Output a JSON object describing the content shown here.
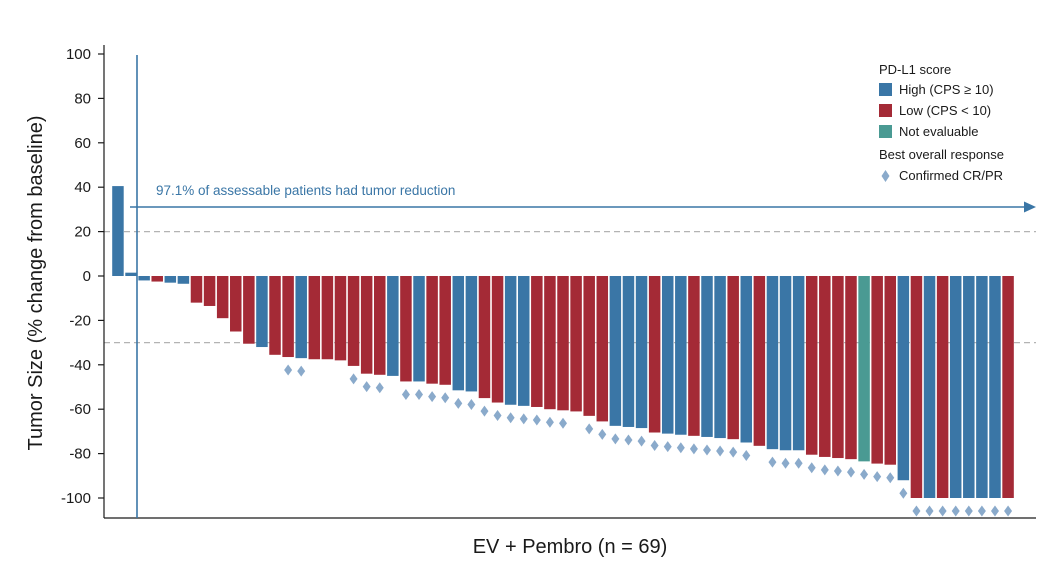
{
  "chart_data": {
    "type": "bar",
    "title": "",
    "xlabel": "EV + Pembro (n = 69)",
    "ylabel": "Tumor Size (% change from baseline)",
    "ylim": [
      -108,
      102
    ],
    "yticks": [
      100,
      80,
      60,
      40,
      20,
      0,
      -20,
      -40,
      -60,
      -80,
      -100
    ],
    "reference_lines": [
      20,
      -30
    ],
    "colors": {
      "high": "#3a76a6",
      "low": "#a42a36",
      "ne": "#4a9a93",
      "marker": "#8aaacb",
      "annotation": "#3a76a6",
      "axis": "#1a1a1a",
      "refline": "#b3b3b3"
    },
    "annotation": {
      "text": "97.1% of assessable patients had tumor reduction"
    },
    "legend": {
      "placement": "top-right",
      "pdl1_title": "PD-L1 score",
      "entries": [
        {
          "key": "high",
          "label": "High (CPS ≥ 10)"
        },
        {
          "key": "low",
          "label": "Low (CPS < 10)"
        },
        {
          "key": "ne",
          "label": "Not evaluable"
        }
      ],
      "response_title": "Best overall response",
      "marker_label": "Confirmed CR/PR"
    },
    "bars": [
      {
        "value": 40.5,
        "group": "high",
        "response": false
      },
      {
        "value": 1.5,
        "group": "high",
        "response": false
      },
      {
        "value": -2,
        "group": "high",
        "response": false
      },
      {
        "value": -2.5,
        "group": "low",
        "response": false
      },
      {
        "value": -3,
        "group": "high",
        "response": false
      },
      {
        "value": -3.5,
        "group": "high",
        "response": false
      },
      {
        "value": -12,
        "group": "low",
        "response": false
      },
      {
        "value": -13.5,
        "group": "low",
        "response": false
      },
      {
        "value": -19,
        "group": "low",
        "response": false
      },
      {
        "value": -25,
        "group": "low",
        "response": false
      },
      {
        "value": -30.5,
        "group": "low",
        "response": false
      },
      {
        "value": -32,
        "group": "high",
        "response": false
      },
      {
        "value": -35.5,
        "group": "low",
        "response": false
      },
      {
        "value": -36.5,
        "group": "low",
        "response": true
      },
      {
        "value": -37,
        "group": "high",
        "response": true
      },
      {
        "value": -37.5,
        "group": "low",
        "response": false
      },
      {
        "value": -37.5,
        "group": "low",
        "response": false
      },
      {
        "value": -38,
        "group": "low",
        "response": false
      },
      {
        "value": -40.5,
        "group": "low",
        "response": true
      },
      {
        "value": -44,
        "group": "low",
        "response": true
      },
      {
        "value": -44.5,
        "group": "low",
        "response": true
      },
      {
        "value": -45,
        "group": "high",
        "response": false
      },
      {
        "value": -47.5,
        "group": "low",
        "response": true
      },
      {
        "value": -47.5,
        "group": "high",
        "response": true
      },
      {
        "value": -48.5,
        "group": "low",
        "response": true
      },
      {
        "value": -49,
        "group": "low",
        "response": true
      },
      {
        "value": -51.5,
        "group": "high",
        "response": true
      },
      {
        "value": -52,
        "group": "high",
        "response": true
      },
      {
        "value": -55,
        "group": "low",
        "response": true
      },
      {
        "value": -57,
        "group": "low",
        "response": true
      },
      {
        "value": -58,
        "group": "high",
        "response": true
      },
      {
        "value": -58.5,
        "group": "high",
        "response": true
      },
      {
        "value": -59,
        "group": "low",
        "response": true
      },
      {
        "value": -60,
        "group": "low",
        "response": true
      },
      {
        "value": -60.5,
        "group": "low",
        "response": true
      },
      {
        "value": -61,
        "group": "low",
        "response": false
      },
      {
        "value": -63,
        "group": "low",
        "response": true
      },
      {
        "value": -65.5,
        "group": "low",
        "response": true
      },
      {
        "value": -67.5,
        "group": "high",
        "response": true
      },
      {
        "value": -68,
        "group": "high",
        "response": true
      },
      {
        "value": -68.5,
        "group": "high",
        "response": true
      },
      {
        "value": -70.5,
        "group": "low",
        "response": true
      },
      {
        "value": -71,
        "group": "high",
        "response": true
      },
      {
        "value": -71.5,
        "group": "high",
        "response": true
      },
      {
        "value": -72,
        "group": "low",
        "response": true
      },
      {
        "value": -72.5,
        "group": "high",
        "response": true
      },
      {
        "value": -73,
        "group": "high",
        "response": true
      },
      {
        "value": -73.5,
        "group": "low",
        "response": true
      },
      {
        "value": -75,
        "group": "high",
        "response": true
      },
      {
        "value": -76.5,
        "group": "low",
        "response": false
      },
      {
        "value": -78,
        "group": "high",
        "response": true
      },
      {
        "value": -78.5,
        "group": "high",
        "response": true
      },
      {
        "value": -78.5,
        "group": "high",
        "response": true
      },
      {
        "value": -80.5,
        "group": "low",
        "response": true
      },
      {
        "value": -81.5,
        "group": "low",
        "response": true
      },
      {
        "value": -82,
        "group": "low",
        "response": true
      },
      {
        "value": -82.5,
        "group": "low",
        "response": true
      },
      {
        "value": -83.5,
        "group": "ne",
        "response": true
      },
      {
        "value": -84.5,
        "group": "low",
        "response": true
      },
      {
        "value": -85,
        "group": "low",
        "response": true
      },
      {
        "value": -92,
        "group": "high",
        "response": true
      },
      {
        "value": -100,
        "group": "low",
        "response": true
      },
      {
        "value": -100,
        "group": "high",
        "response": true
      },
      {
        "value": -100,
        "group": "low",
        "response": true
      },
      {
        "value": -100,
        "group": "high",
        "response": true
      },
      {
        "value": -100,
        "group": "high",
        "response": true
      },
      {
        "value": -100,
        "group": "high",
        "response": true
      },
      {
        "value": -100,
        "group": "high",
        "response": true
      },
      {
        "value": -100,
        "group": "low",
        "response": true
      }
    ]
  }
}
